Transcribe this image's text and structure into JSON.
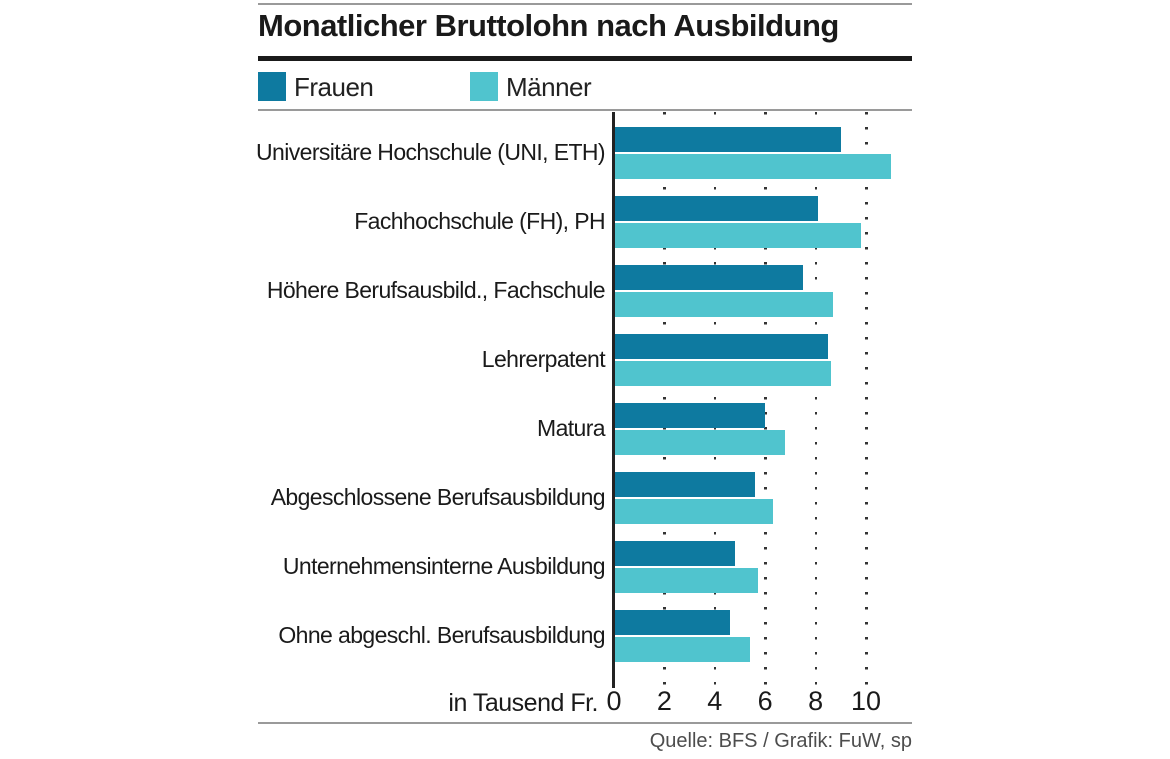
{
  "title": "Monatlicher Bruttolohn nach Ausbildung",
  "legend": {
    "frauen": "Frauen",
    "maenner": "Männer"
  },
  "axis": {
    "unit_label": "in Tausend Fr.",
    "tick_values": [
      0,
      2,
      4,
      6,
      8,
      10
    ]
  },
  "source": "Quelle: BFS / Grafik: FuW, sp",
  "colors": {
    "frauen": "#0e7aa0",
    "maenner": "#50c4ce",
    "title_text": "#1a1a1a",
    "rule": "#1a1a1a",
    "hairline": "#9a9a9a",
    "source_text": "#4d4d4d"
  },
  "chart_data": {
    "type": "bar",
    "orientation": "horizontal",
    "title": "Monatlicher Bruttolohn nach Ausbildung",
    "xlabel": "in Tausend Fr.",
    "unit": "Tausend Fr. pro Monat",
    "xlim": [
      0,
      11.9
    ],
    "xticks": [
      0,
      2,
      4,
      6,
      8,
      10
    ],
    "grid": "dotted-vertical",
    "legend_position": "top",
    "categories": [
      "Universitäre Hochschule (UNI, ETH)",
      "Fachhochschule (FH), PH",
      "Höhere Berufsausbild., Fachschule",
      "Lehrerpatent",
      "Matura",
      "Abgeschlossene Berufsausbildung",
      "Unternehmensinterne Ausbildung",
      "Ohne abgeschl. Berufsausbildung"
    ],
    "series": [
      {
        "name": "Frauen",
        "values": [
          9.0,
          8.1,
          7.5,
          8.5,
          6.0,
          5.6,
          4.8,
          4.6
        ]
      },
      {
        "name": "Männer",
        "values": [
          11.0,
          9.8,
          8.7,
          8.6,
          6.8,
          6.3,
          5.7,
          5.4
        ]
      }
    ]
  }
}
